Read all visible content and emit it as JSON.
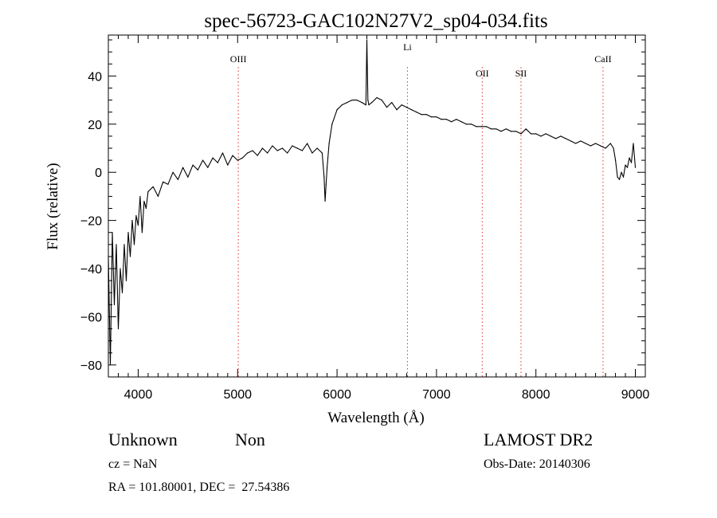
{
  "chart_data": {
    "type": "line",
    "title": "spec-56723-GAC102N27V2_sp04-034.fits",
    "xlabel": "Wavelength (Å)",
    "ylabel": "Flux (relative)",
    "xlim": [
      3700,
      9100
    ],
    "ylim": [
      -85,
      57
    ],
    "x_ticks": [
      4000,
      5000,
      6000,
      7000,
      8000,
      9000
    ],
    "x_tick_labels": [
      "4000",
      "5000",
      "6000",
      "7000",
      "8000",
      "9000"
    ],
    "y_ticks": [
      -80,
      -60,
      -40,
      -20,
      0,
      20,
      40
    ],
    "y_tick_labels": [
      "−80",
      "−60",
      "−40",
      "−20",
      "0",
      "20",
      "40"
    ],
    "grid": false,
    "line_color": "#000000",
    "marker_color": "#e03030",
    "lines": [
      {
        "label": "OIII",
        "x": 5007
      },
      {
        "label": "Li",
        "x": 6708
      },
      {
        "label": "OII",
        "x": 7460
      },
      {
        "label": "SII",
        "x": 7850
      },
      {
        "label": "CaII",
        "x": 8675
      }
    ],
    "series": [
      {
        "x": [
          3700,
          3720,
          3740,
          3760,
          3780,
          3800,
          3820,
          3840,
          3860,
          3880,
          3900,
          3920,
          3940,
          3960,
          3980,
          4000,
          4020,
          4040,
          4060,
          4080,
          4100,
          4150,
          4200,
          4250,
          4300,
          4350,
          4400,
          4450,
          4500,
          4550,
          4600,
          4650,
          4700,
          4750,
          4800,
          4850,
          4900,
          4950,
          5000,
          5050,
          5100,
          5150,
          5200,
          5250,
          5300,
          5350,
          5400,
          5450,
          5500,
          5550,
          5600,
          5650,
          5700,
          5750,
          5800,
          5850,
          5870,
          5880,
          5890,
          5900,
          5920,
          5950,
          6000,
          6050,
          6100,
          6150,
          6200,
          6250,
          6290,
          6300,
          6310,
          6320,
          6350,
          6400,
          6450,
          6500,
          6550,
          6600,
          6650,
          6700,
          6750,
          6800,
          6850,
          6900,
          6950,
          7000,
          7050,
          7100,
          7150,
          7200,
          7250,
          7300,
          7350,
          7400,
          7450,
          7500,
          7550,
          7600,
          7650,
          7700,
          7750,
          7800,
          7850,
          7900,
          7950,
          8000,
          8050,
          8100,
          8150,
          8200,
          8250,
          8300,
          8350,
          8400,
          8450,
          8500,
          8550,
          8600,
          8650,
          8700,
          8750,
          8780,
          8800,
          8820,
          8840,
          8860,
          8880,
          8900,
          8920,
          8940,
          8960,
          8980,
          9000
        ],
        "y": [
          -35,
          -80,
          -25,
          -55,
          -30,
          -65,
          -40,
          -50,
          -30,
          -45,
          -25,
          -35,
          -20,
          -30,
          -18,
          -22,
          -10,
          -25,
          -12,
          -15,
          -8,
          -6,
          -10,
          -4,
          -5,
          0,
          -3,
          2,
          -2,
          3,
          1,
          5,
          2,
          6,
          4,
          8,
          3,
          7,
          5,
          6,
          8,
          9,
          7,
          10,
          8,
          11,
          9,
          10,
          8,
          11,
          10,
          9,
          12,
          8,
          10,
          8,
          -2,
          -12,
          -5,
          2,
          12,
          20,
          26,
          28,
          29,
          30,
          30,
          29,
          28,
          55,
          30,
          28,
          29,
          31,
          30,
          27,
          29,
          26,
          28,
          27,
          26,
          25,
          24,
          24,
          23,
          23,
          22,
          22,
          21,
          22,
          21,
          20,
          20,
          19,
          19,
          19,
          18,
          18,
          17,
          18,
          17,
          17,
          16,
          18,
          16,
          16,
          15,
          16,
          15,
          14,
          15,
          14,
          13,
          12,
          13,
          12,
          11,
          12,
          11,
          10,
          12,
          10,
          5,
          -2,
          -3,
          0,
          -2,
          3,
          2,
          6,
          4,
          12,
          2
        ]
      }
    ]
  },
  "info": {
    "class": "Unknown",
    "subclass": "Non",
    "survey": "LAMOST DR2",
    "cz": "cz = NaN",
    "obs_date": "Obs-Date: 20140306",
    "coords": "RA = 101.80001, DEC =  27.54386"
  }
}
